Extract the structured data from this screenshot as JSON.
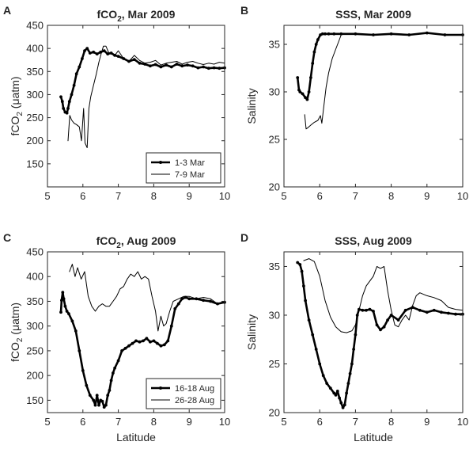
{
  "figure": {
    "background": "#ffffff",
    "axis_color": "#262626",
    "line_color": "#000000"
  },
  "chart_data": [
    {
      "panel_letter": "A",
      "type": "line",
      "title_main": "fCO",
      "title_sub": "2",
      "title_rest": ", Mar 2009",
      "xlabel": "",
      "ylabel_main": "fCO",
      "ylabel_sub": "2",
      "ylabel_rest": " (μatm)",
      "xlim": [
        5,
        10
      ],
      "ylim": [
        100,
        450
      ],
      "xticks": [
        5,
        6,
        7,
        8,
        9,
        10
      ],
      "yticks": [
        150,
        200,
        250,
        300,
        350,
        400,
        450
      ],
      "grid": false,
      "legend": {
        "position": "bottom-right",
        "entries": [
          "1-3 Mar",
          "7-9 Mar"
        ]
      },
      "series": [
        {
          "name": "1-3 Mar",
          "style": "thick-dotted",
          "x": [
            5.38,
            5.42,
            5.45,
            5.5,
            5.55,
            5.58,
            5.62,
            5.68,
            5.75,
            5.82,
            5.9,
            5.98,
            6.05,
            6.12,
            6.2,
            6.3,
            6.4,
            6.5,
            6.6,
            6.7,
            6.8,
            6.9,
            7.0,
            7.15,
            7.3,
            7.45,
            7.6,
            7.75,
            7.9,
            8.05,
            8.2,
            8.35,
            8.5,
            8.65,
            8.8,
            8.95,
            9.1,
            9.25,
            9.4,
            9.55,
            9.7,
            9.85,
            10.0
          ],
          "y": [
            295,
            285,
            270,
            262,
            260,
            270,
            285,
            300,
            320,
            345,
            360,
            378,
            395,
            400,
            390,
            392,
            388,
            392,
            395,
            388,
            390,
            385,
            383,
            378,
            372,
            376,
            368,
            366,
            362,
            365,
            360,
            364,
            360,
            366,
            362,
            364,
            362,
            358,
            360,
            357,
            358,
            357,
            358
          ]
        },
        {
          "name": "7-9 Mar",
          "style": "thin",
          "x": [
            5.58,
            5.63,
            5.68,
            5.75,
            5.82,
            5.9,
            5.96,
            6.02,
            6.06,
            6.12,
            6.17,
            6.22,
            6.3,
            6.38,
            6.45,
            6.52,
            6.58,
            6.65,
            6.72,
            6.8,
            6.9,
            7.0,
            7.15,
            7.3,
            7.45,
            7.6,
            7.75,
            7.9,
            8.05,
            8.2,
            8.35,
            8.5,
            8.65,
            8.8,
            8.95,
            9.1,
            9.25,
            9.4,
            9.55,
            9.7,
            9.85,
            10.0
          ],
          "y": [
            200,
            255,
            245,
            238,
            235,
            230,
            200,
            270,
            195,
            185,
            270,
            295,
            320,
            345,
            370,
            390,
            405,
            405,
            392,
            388,
            385,
            395,
            378,
            372,
            385,
            374,
            368,
            370,
            374,
            364,
            368,
            370,
            372,
            366,
            370,
            372,
            368,
            365,
            368,
            366,
            370,
            368
          ]
        }
      ]
    },
    {
      "panel_letter": "B",
      "type": "line",
      "title_main": "SSS, Mar 2009",
      "title_sub": "",
      "title_rest": "",
      "xlabel": "",
      "ylabel_main": "Salinity",
      "ylabel_sub": "",
      "ylabel_rest": "",
      "xlim": [
        5,
        10
      ],
      "ylim": [
        20,
        37
      ],
      "xticks": [
        5,
        6,
        7,
        8,
        9,
        10
      ],
      "yticks": [
        20,
        25,
        30,
        35
      ],
      "grid": false,
      "series": [
        {
          "name": "1-3 Mar",
          "style": "thick-dotted",
          "x": [
            5.38,
            5.42,
            5.45,
            5.52,
            5.6,
            5.65,
            5.7,
            5.75,
            5.8,
            5.85,
            5.9,
            5.95,
            6.02,
            6.08,
            6.15,
            6.25,
            6.4,
            6.6,
            7.0,
            7.5,
            8.0,
            8.5,
            9.0,
            9.5,
            10.0
          ],
          "y": [
            31.5,
            30.2,
            30.0,
            29.8,
            29.4,
            29.2,
            30.0,
            31.5,
            33.0,
            34.2,
            35.0,
            35.5,
            36.0,
            36.1,
            36.1,
            36.1,
            36.1,
            36.1,
            36.1,
            36.0,
            36.1,
            36.0,
            36.2,
            36.0,
            36.0
          ]
        },
        {
          "name": "7-9 Mar",
          "style": "thin",
          "x": [
            5.58,
            5.62,
            5.66,
            5.75,
            5.85,
            5.95,
            6.02,
            6.06,
            6.1,
            6.18,
            6.25,
            6.35,
            6.45,
            6.55,
            6.6,
            6.7,
            7.0,
            7.5,
            8.0,
            8.5,
            9.0,
            9.5,
            10.0
          ],
          "y": [
            27.6,
            26.1,
            26.2,
            26.5,
            26.8,
            27.0,
            27.5,
            26.7,
            28.0,
            30.5,
            32.0,
            33.5,
            34.5,
            35.5,
            36.0,
            36.1,
            36.1,
            36.0,
            36.1,
            36.0,
            36.2,
            36.0,
            36.0
          ]
        }
      ]
    },
    {
      "panel_letter": "C",
      "type": "line",
      "title_main": "fCO",
      "title_sub": "2",
      "title_rest": ", Aug 2009",
      "xlabel": "Latitude",
      "ylabel_main": "fCO",
      "ylabel_sub": "2",
      "ylabel_rest": " (μatm)",
      "xlim": [
        5,
        10
      ],
      "ylim": [
        125,
        450
      ],
      "xticks": [
        5,
        6,
        7,
        8,
        9,
        10
      ],
      "yticks": [
        150,
        200,
        250,
        300,
        350,
        400,
        450
      ],
      "grid": false,
      "legend": {
        "position": "bottom-right",
        "entries": [
          "16-18 Aug",
          "26-28 Aug"
        ]
      },
      "series": [
        {
          "name": "16-18 Aug",
          "style": "thick-dotted",
          "x": [
            5.38,
            5.4,
            5.43,
            5.46,
            5.5,
            5.55,
            5.6,
            5.7,
            5.8,
            5.9,
            6.0,
            6.1,
            6.2,
            6.3,
            6.35,
            6.4,
            6.45,
            6.5,
            6.55,
            6.6,
            6.65,
            6.7,
            6.75,
            6.8,
            6.85,
            6.9,
            7.0,
            7.1,
            7.2,
            7.3,
            7.4,
            7.5,
            7.6,
            7.7,
            7.8,
            7.9,
            8.0,
            8.1,
            8.2,
            8.3,
            8.4,
            8.5,
            8.6,
            8.7,
            8.8,
            8.9,
            9.0,
            9.2,
            9.4,
            9.6,
            9.8,
            10.0
          ],
          "y": [
            328,
            352,
            368,
            355,
            340,
            330,
            325,
            310,
            290,
            250,
            210,
            180,
            160,
            150,
            140,
            160,
            140,
            150,
            148,
            136,
            140,
            160,
            170,
            190,
            205,
            215,
            230,
            250,
            255,
            260,
            265,
            270,
            268,
            270,
            275,
            268,
            270,
            265,
            260,
            262,
            270,
            300,
            335,
            345,
            355,
            358,
            355,
            355,
            352,
            350,
            345,
            348
          ]
        },
        {
          "name": "26-28 Aug",
          "style": "thin",
          "x": [
            5.62,
            5.7,
            5.78,
            5.85,
            5.95,
            6.05,
            6.15,
            6.25,
            6.35,
            6.45,
            6.55,
            6.65,
            6.75,
            6.85,
            6.95,
            7.05,
            7.15,
            7.25,
            7.35,
            7.45,
            7.55,
            7.65,
            7.75,
            7.85,
            7.95,
            8.05,
            8.12,
            8.2,
            8.28,
            8.35,
            8.45,
            8.55,
            8.7,
            8.85,
            9.0,
            9.2,
            9.4,
            9.6,
            9.8,
            10.0
          ],
          "y": [
            410,
            425,
            400,
            418,
            395,
            410,
            360,
            340,
            330,
            340,
            345,
            340,
            340,
            350,
            360,
            375,
            380,
            395,
            405,
            400,
            410,
            395,
            400,
            395,
            360,
            330,
            290,
            320,
            300,
            305,
            330,
            350,
            355,
            360,
            360,
            355,
            358,
            355,
            345,
            348
          ]
        }
      ]
    },
    {
      "panel_letter": "D",
      "type": "line",
      "title_main": "SSS, Aug 2009",
      "title_sub": "",
      "title_rest": "",
      "xlabel": "Latitude",
      "ylabel_main": "Salinity",
      "ylabel_sub": "",
      "ylabel_rest": "",
      "xlim": [
        5,
        10
      ],
      "ylim": [
        20,
        36.5
      ],
      "xticks": [
        5,
        6,
        7,
        8,
        9,
        10
      ],
      "yticks": [
        20,
        25,
        30,
        35
      ],
      "grid": false,
      "series": [
        {
          "name": "16-18 Aug",
          "style": "thick-dotted",
          "x": [
            5.38,
            5.45,
            5.5,
            5.55,
            5.6,
            5.7,
            5.8,
            5.9,
            6.0,
            6.1,
            6.2,
            6.3,
            6.4,
            6.45,
            6.5,
            6.55,
            6.6,
            6.65,
            6.7,
            6.75,
            6.8,
            6.85,
            6.9,
            6.95,
            7.0,
            7.05,
            7.1,
            7.2,
            7.3,
            7.4,
            7.5,
            7.6,
            7.7,
            7.8,
            7.9,
            8.0,
            8.2,
            8.4,
            8.6,
            8.8,
            9.0,
            9.2,
            9.4,
            9.6,
            9.8,
            10.0
          ],
          "y": [
            35.4,
            35.2,
            34.5,
            33.0,
            31.5,
            29.5,
            28.0,
            26.5,
            25.0,
            23.8,
            23.0,
            22.5,
            22.0,
            21.8,
            22.2,
            21.5,
            21.0,
            20.5,
            20.8,
            22.0,
            23.0,
            24.0,
            25.0,
            26.5,
            28.0,
            30.0,
            30.6,
            30.5,
            30.5,
            30.6,
            30.4,
            29.0,
            28.5,
            28.8,
            29.5,
            30.0,
            29.5,
            30.5,
            30.8,
            30.5,
            30.3,
            30.5,
            30.3,
            30.2,
            30.1,
            30.1
          ]
        },
        {
          "name": "26-28 Aug",
          "style": "thin",
          "x": [
            5.55,
            5.7,
            5.85,
            6.0,
            6.15,
            6.3,
            6.45,
            6.6,
            6.75,
            6.9,
            7.0,
            7.1,
            7.2,
            7.3,
            7.4,
            7.5,
            7.6,
            7.7,
            7.8,
            7.9,
            8.0,
            8.1,
            8.2,
            8.3,
            8.4,
            8.5,
            8.6,
            8.7,
            8.8,
            9.0,
            9.2,
            9.4,
            9.6,
            9.8,
            10.0
          ],
          "y": [
            35.6,
            35.8,
            35.5,
            34.0,
            31.5,
            29.8,
            28.8,
            28.3,
            28.2,
            28.4,
            29.0,
            30.5,
            32.0,
            33.0,
            33.5,
            34.0,
            35.0,
            34.8,
            35.0,
            32.5,
            30.5,
            29.0,
            28.8,
            29.5,
            30.0,
            29.5,
            31.0,
            32.0,
            32.3,
            32.0,
            31.8,
            31.5,
            30.8,
            30.6,
            30.5
          ]
        }
      ]
    }
  ]
}
